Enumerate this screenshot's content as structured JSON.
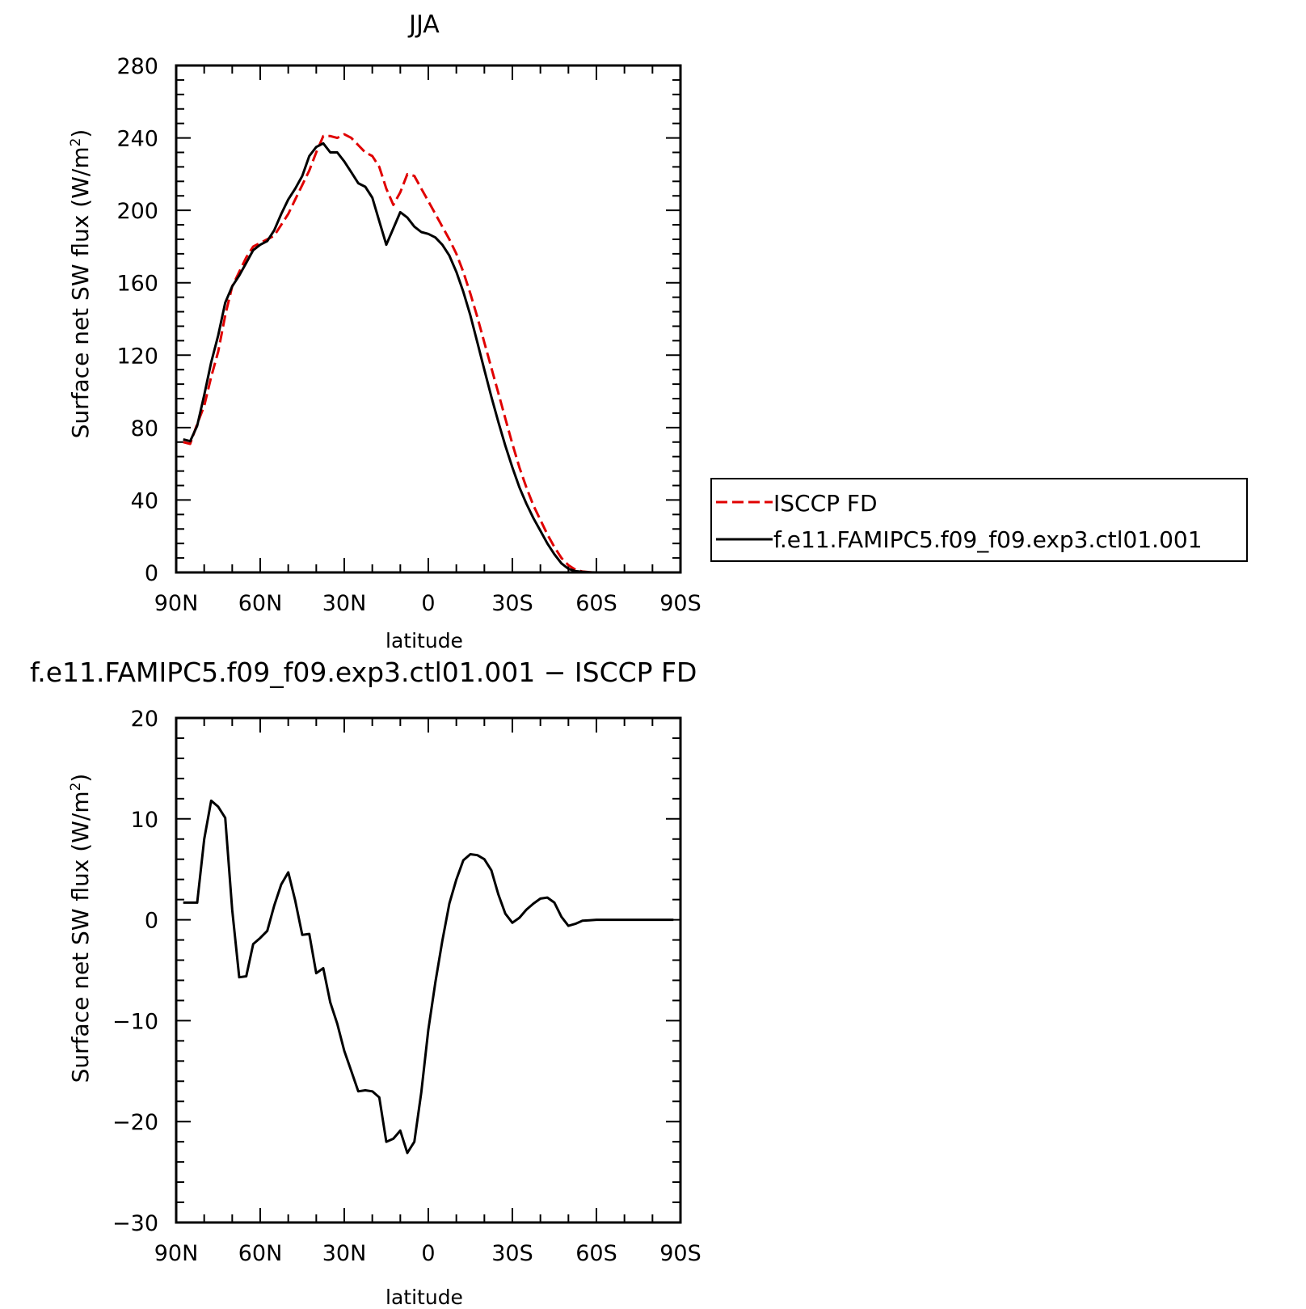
{
  "chart_data": [
    {
      "type": "line",
      "title": "JJA",
      "xlabel": "latitude",
      "ylabel": "Surface net SW flux (W/m",
      "ylabel_sup": "2",
      "ylabel_close": ")",
      "xlim": [
        90,
        -90
      ],
      "ylim": [
        0,
        280
      ],
      "xticks": [
        {
          "value": 90,
          "label": "90N"
        },
        {
          "value": 60,
          "label": "60N"
        },
        {
          "value": 30,
          "label": "30N"
        },
        {
          "value": 0,
          "label": "0"
        },
        {
          "value": -30,
          "label": "30S"
        },
        {
          "value": -60,
          "label": "60S"
        },
        {
          "value": -90,
          "label": "90S"
        }
      ],
      "yticks": [
        0,
        40,
        80,
        120,
        160,
        200,
        240,
        280
      ],
      "legend": "outside-right",
      "series": [
        {
          "name": "ISCCP FD",
          "color": "#e00000",
          "style": "dashed",
          "x": [
            87.5,
            85,
            82.5,
            80,
            77.5,
            75,
            72.5,
            70,
            67.5,
            65,
            62.5,
            60,
            57.5,
            55,
            52.5,
            50,
            47.5,
            45,
            42.5,
            40,
            37.5,
            35,
            32.5,
            30,
            27.5,
            25,
            22.5,
            20,
            17.5,
            15,
            12.5,
            10,
            7.5,
            5,
            2.5,
            0,
            -2.5,
            -5,
            -7.5,
            -10,
            -12.5,
            -15,
            -17.5,
            -20,
            -22.5,
            -25,
            -27.5,
            -30,
            -32.5,
            -35,
            -37.5,
            -40,
            -42.5,
            -45,
            -47.5,
            -50,
            -52.5,
            -55,
            -57.5,
            -60,
            -62.5,
            -65,
            -67.5,
            -70,
            -72.5,
            -75,
            -77.5,
            -80,
            -82.5,
            -85,
            -87.5
          ],
          "y": [
            72,
            71,
            82,
            92,
            108,
            122,
            142,
            158,
            166,
            174,
            180,
            182,
            184,
            186,
            192,
            198,
            206,
            214,
            222,
            232,
            241,
            241,
            240,
            242,
            240,
            236,
            232,
            230,
            224,
            212,
            203,
            210,
            220,
            219,
            212,
            205,
            198,
            191,
            184,
            176,
            166,
            154,
            141,
            127,
            113,
            99,
            85,
            71,
            58,
            47,
            37,
            29,
            21,
            14,
            8,
            4,
            1.5,
            0.5,
            0.2,
            0,
            0,
            0,
            0,
            0,
            0,
            0,
            0,
            0,
            0,
            0,
            0
          ]
        },
        {
          "name": "f.e11.FAMIPC5.f09_f09.exp3.ctl01.001",
          "color": "#000000",
          "style": "solid",
          "x": [
            87.5,
            85,
            82.5,
            80,
            77.5,
            75,
            72.5,
            70,
            67.5,
            65,
            62.5,
            60,
            57.5,
            55,
            52.5,
            50,
            47.5,
            45,
            42.5,
            40,
            37.5,
            35,
            32.5,
            30,
            27.5,
            25,
            22.5,
            20,
            17.5,
            15,
            12.5,
            10,
            7.5,
            5,
            2.5,
            0,
            -2.5,
            -5,
            -7.5,
            -10,
            -12.5,
            -15,
            -17.5,
            -20,
            -22.5,
            -25,
            -27.5,
            -30,
            -32.5,
            -35,
            -37.5,
            -40,
            -42.5,
            -45,
            -47.5,
            -50,
            -52.5,
            -55,
            -57.5,
            -60,
            -62.5,
            -65,
            -67.5,
            -70,
            -72.5,
            -75,
            -77.5,
            -80,
            -82.5,
            -85,
            -87.5
          ],
          "y": [
            73.5,
            72.5,
            81,
            98,
            116,
            131,
            149,
            158,
            164,
            171,
            178,
            181,
            183,
            189,
            198,
            206,
            212,
            219,
            230,
            235,
            237,
            232,
            232,
            227,
            221,
            215,
            213,
            207,
            194,
            181,
            190,
            199,
            196,
            191,
            188,
            187,
            185,
            181,
            175,
            166,
            155,
            142,
            127,
            112,
            97,
            83,
            70,
            58,
            47,
            38,
            30,
            23,
            16,
            10,
            5,
            2,
            0.7,
            0.3,
            0.1,
            0,
            0,
            0,
            0,
            0,
            0,
            0,
            0,
            0,
            0,
            0,
            0
          ]
        }
      ]
    },
    {
      "type": "line",
      "title": "f.e11.FAMIPC5.f09_f09.exp3.ctl01.001 − ISCCP FD",
      "xlabel": "latitude",
      "ylabel": "Surface net SW flux (W/m",
      "ylabel_sup": "2",
      "ylabel_close": ")",
      "xlim": [
        90,
        -90
      ],
      "ylim": [
        -30,
        20
      ],
      "xticks": [
        {
          "value": 90,
          "label": "90N"
        },
        {
          "value": 60,
          "label": "60N"
        },
        {
          "value": 30,
          "label": "30N"
        },
        {
          "value": 0,
          "label": "0"
        },
        {
          "value": -30,
          "label": "30S"
        },
        {
          "value": -60,
          "label": "60S"
        },
        {
          "value": -90,
          "label": "90S"
        }
      ],
      "yticks": [
        {
          "value": -30,
          "label": "−30"
        },
        {
          "value": -20,
          "label": "−20"
        },
        {
          "value": -10,
          "label": "−10"
        },
        {
          "value": 0,
          "label": "0"
        },
        {
          "value": 10,
          "label": "10"
        },
        {
          "value": 20,
          "label": "20"
        }
      ],
      "series": [
        {
          "color": "#000000",
          "style": "solid",
          "x": [
            87.5,
            85,
            82.5,
            80,
            77.5,
            75,
            72.5,
            70,
            67.5,
            65,
            62.5,
            60,
            57.5,
            55,
            52.5,
            50,
            47.5,
            45,
            42.5,
            40,
            37.5,
            35,
            32.5,
            30,
            27.5,
            25,
            22.5,
            20,
            17.5,
            15,
            12.5,
            10,
            7.5,
            5,
            2.5,
            0,
            -2.5,
            -5,
            -7.5,
            -10,
            -12.5,
            -15,
            -17.5,
            -20,
            -22.5,
            -25,
            -27.5,
            -30,
            -32.5,
            -35,
            -37.5,
            -40,
            -42.5,
            -45,
            -47.5,
            -50,
            -52.5,
            -55,
            -57.5,
            -60,
            -62.5,
            -65,
            -67.5,
            -70,
            -72.5,
            -75,
            -77.5,
            -80,
            -82.5,
            -85,
            -87.5
          ],
          "y": [
            1.7,
            1.7,
            1.7,
            8,
            11.8,
            11.2,
            10.1,
            1,
            -5.7,
            -5.6,
            -2.4,
            -1.8,
            -1.1,
            1.4,
            3.5,
            4.7,
            1.9,
            -1.5,
            -1.4,
            -5.3,
            -4.8,
            -8.2,
            -10.3,
            -13,
            -15,
            -17,
            -16.9,
            -17,
            -17.6,
            -22,
            -21.7,
            -20.9,
            -23.1,
            -22,
            -17.1,
            -10.9,
            -6.2,
            -2.1,
            1.6,
            4,
            5.9,
            6.5,
            6.4,
            6,
            4.9,
            2.5,
            0.6,
            -0.3,
            0.2,
            1,
            1.6,
            2.1,
            2.2,
            1.7,
            0.3,
            -0.6,
            -0.4,
            -0.1,
            -0.05,
            0,
            0,
            0,
            0,
            0,
            0,
            0,
            0,
            0,
            0,
            0,
            0
          ]
        }
      ]
    }
  ]
}
